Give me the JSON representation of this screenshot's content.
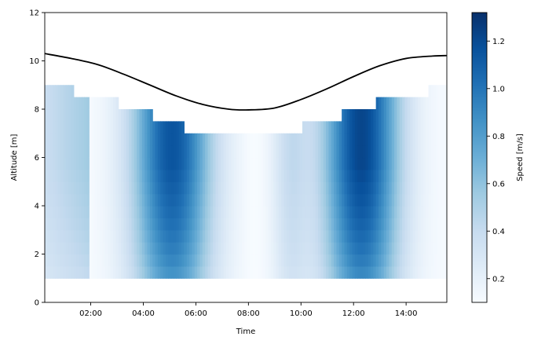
{
  "chart_data": {
    "type": "heatmap",
    "title": "",
    "xlabel": "Time",
    "ylabel": "Altitude [m]",
    "colorbar_label": "Speed [m/s]",
    "colormap": "Blues",
    "xlim_hours": [
      0.25,
      15.55
    ],
    "ylim": [
      0,
      12
    ],
    "clim": [
      0.1,
      1.32
    ],
    "x_ticks": [
      {
        "hour": 2,
        "label": "02:00"
      },
      {
        "hour": 4,
        "label": "04:00"
      },
      {
        "hour": 6,
        "label": "06:00"
      },
      {
        "hour": 8,
        "label": "08:00"
      },
      {
        "hour": 10,
        "label": "10:00"
      },
      {
        "hour": 12,
        "label": "12:00"
      },
      {
        "hour": 14,
        "label": "14:00"
      }
    ],
    "y_ticks": [
      0,
      2,
      4,
      6,
      8,
      10,
      12
    ],
    "colorbar_ticks": [
      0.2,
      0.4,
      0.6,
      0.8,
      1.0,
      1.2
    ],
    "colorbar_tick_labels": [
      "0.2",
      "0.4",
      "0.6",
      "0.8",
      "1.0",
      "1.2"
    ],
    "bin_bottom_m": 1.0,
    "bin_height_m": 0.5,
    "profile_tops": [
      {
        "from_hour": 0.25,
        "to_hour": 1.35,
        "top_m": 9.0
      },
      {
        "from_hour": 1.35,
        "to_hour": 3.05,
        "top_m": 8.5
      },
      {
        "from_hour": 3.05,
        "to_hour": 4.35,
        "top_m": 8.0
      },
      {
        "from_hour": 4.35,
        "to_hour": 5.6,
        "top_m": 7.5
      },
      {
        "from_hour": 5.6,
        "to_hour": 10.1,
        "top_m": 7.0
      },
      {
        "from_hour": 10.1,
        "to_hour": 11.6,
        "top_m": 7.5
      },
      {
        "from_hour": 11.6,
        "to_hour": 12.85,
        "top_m": 8.0
      },
      {
        "from_hour": 12.85,
        "to_hour": 14.85,
        "top_m": 8.5
      },
      {
        "from_hour": 14.85,
        "to_hour": 15.55,
        "top_m": 9.0
      }
    ],
    "water_level": {
      "hours": [
        0.25,
        1.25,
        2.25,
        3.25,
        4.25,
        5.25,
        6.25,
        7.25,
        8.0,
        9.0,
        10.0,
        11.0,
        12.0,
        13.0,
        14.0,
        15.0,
        15.55
      ],
      "values": [
        10.3,
        10.1,
        9.85,
        9.45,
        9.0,
        8.55,
        8.2,
        8.0,
        7.97,
        8.05,
        8.4,
        8.85,
        9.35,
        9.8,
        10.1,
        10.2,
        10.22
      ]
    }
  }
}
